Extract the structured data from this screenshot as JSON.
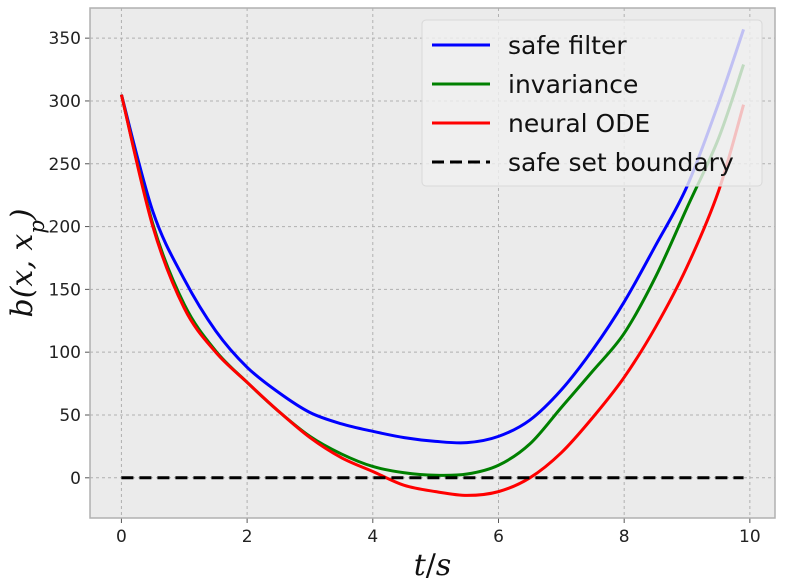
{
  "chart_data": {
    "type": "line",
    "xlabel": "t/s",
    "ylabel": "b(x, x_p)",
    "xlim": [
      -0.5,
      10.4
    ],
    "ylim": [
      -32,
      374
    ],
    "xticks": [
      0,
      2,
      4,
      6,
      8,
      10
    ],
    "yticks": [
      0,
      50,
      100,
      150,
      200,
      250,
      300,
      350
    ],
    "grid": true,
    "legend_position": "top-right",
    "colors": {
      "background": "#ebebeb",
      "grid": "#b0b0b0",
      "spine": "#b0b0b0"
    },
    "x": [
      0,
      0.5,
      1,
      1.5,
      2,
      2.5,
      3,
      3.5,
      4,
      4.5,
      5,
      5.5,
      6,
      6.5,
      7,
      7.5,
      8,
      8.5,
      9,
      9.5,
      9.9
    ],
    "series": [
      {
        "name": "safe filter",
        "color": "#0000ff",
        "style": "solid",
        "values": [
          305,
          212,
          158,
          117,
          88,
          68,
          52,
          43,
          37,
          32,
          29,
          28,
          33,
          46,
          70,
          102,
          140,
          185,
          232,
          298,
          357
        ]
      },
      {
        "name": "invariance",
        "color": "#008000",
        "style": "solid",
        "values": [
          305,
          202,
          138,
          101,
          76,
          53,
          33,
          19,
          9,
          4,
          2,
          3,
          10,
          27,
          56,
          85,
          115,
          160,
          215,
          270,
          329
        ]
      },
      {
        "name": "neural ODE",
        "color": "#ff0000",
        "style": "solid",
        "values": [
          305,
          200,
          135,
          100,
          76,
          53,
          32,
          16,
          5,
          -6,
          -11,
          -14,
          -11,
          0,
          20,
          48,
          80,
          120,
          168,
          228,
          297
        ]
      },
      {
        "name": "safe set boundary",
        "color": "#000000",
        "style": "dashed",
        "values": [
          0,
          0,
          0,
          0,
          0,
          0,
          0,
          0,
          0,
          0,
          0,
          0,
          0,
          0,
          0,
          0,
          0,
          0,
          0,
          0,
          0
        ]
      }
    ]
  }
}
